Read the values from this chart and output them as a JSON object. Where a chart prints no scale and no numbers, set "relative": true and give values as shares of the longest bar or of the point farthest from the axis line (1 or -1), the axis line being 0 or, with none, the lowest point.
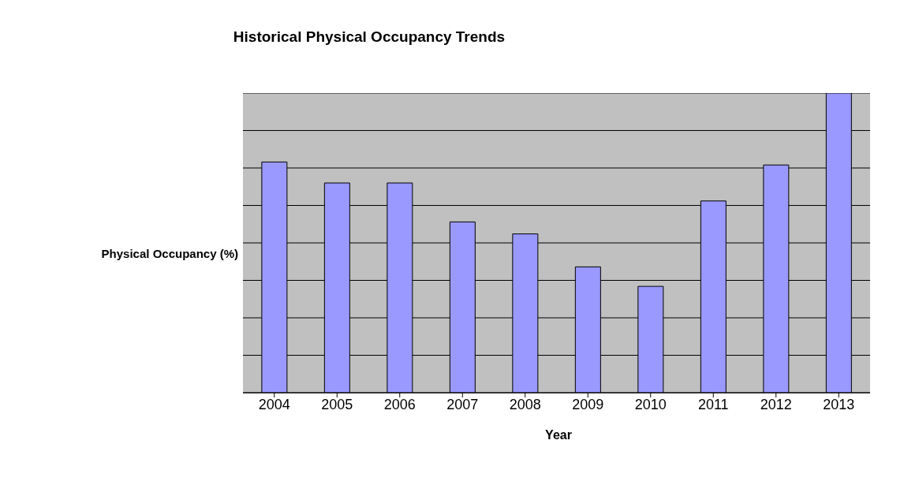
{
  "chart_data": {
    "type": "bar",
    "title": "Historical Physical Occupancy Trends",
    "xlabel": "Year",
    "ylabel": "Physical Occupancy (%)",
    "categories": [
      "2004",
      "2005",
      "2006",
      "2007",
      "2008",
      "2009",
      "2010",
      "2011",
      "2012",
      "2013"
    ],
    "values": [
      0.77,
      0.7,
      0.7,
      0.57,
      0.53,
      0.42,
      0.355,
      0.64,
      0.76,
      1
    ],
    "color": "#9999ff",
    "relative": true,
    "grid": "y"
  }
}
